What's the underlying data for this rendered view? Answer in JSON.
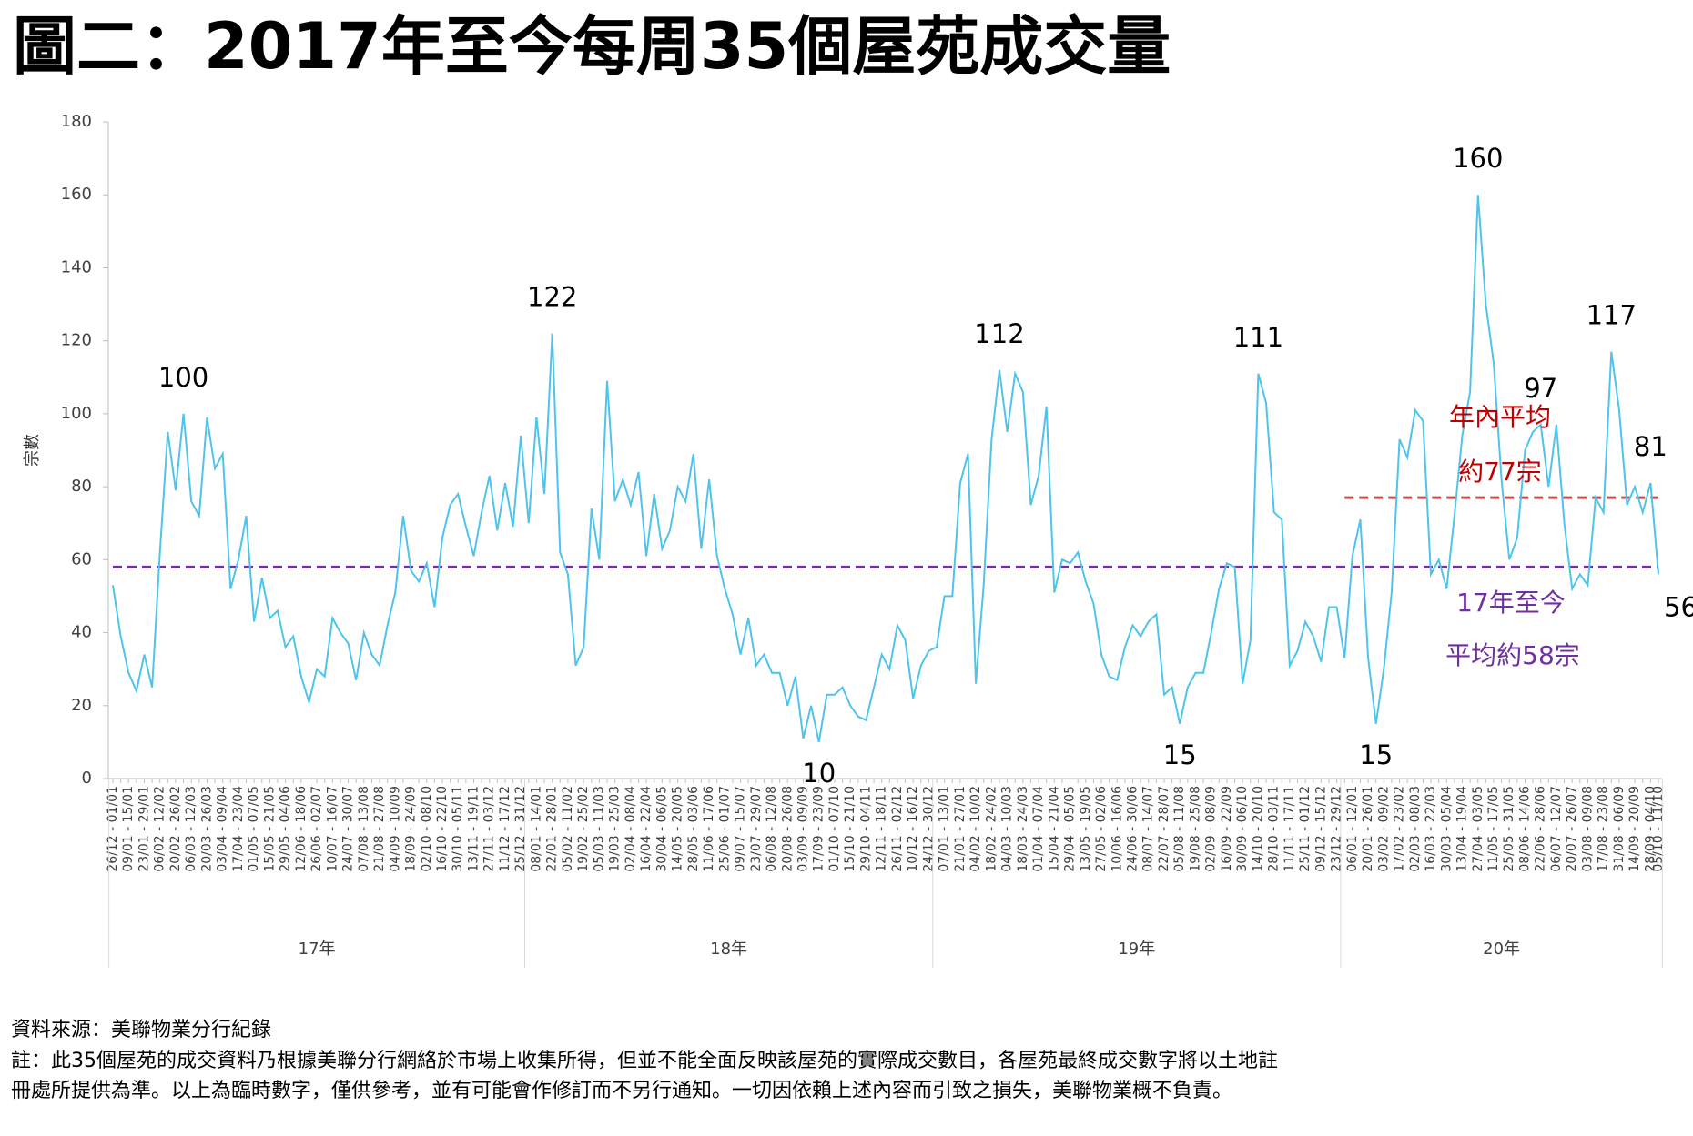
{
  "chart_data": {
    "type": "line",
    "title": "圖二：2017年至今每周35個屋苑成交量",
    "y_label": "宗數",
    "ylim": [
      0,
      180
    ],
    "yticks": [
      0,
      20,
      40,
      60,
      80,
      100,
      120,
      140,
      160,
      180
    ],
    "categories": [
      "26/12 - 01/01",
      null,
      "09/01 - 15/01",
      null,
      "23/01 - 29/01",
      null,
      "06/02 - 12/02",
      null,
      "20/02 - 26/02",
      null,
      "06/03 - 12/03",
      null,
      "20/03 - 26/03",
      null,
      "03/04 - 09/04",
      null,
      "17/04 - 23/04",
      null,
      "01/05 - 07/05",
      null,
      "15/05 - 21/05",
      null,
      "29/05 - 04/06",
      null,
      "12/06 - 18/06",
      null,
      "26/06 - 02/07",
      null,
      "10/07 - 16/07",
      null,
      "24/07 - 30/07",
      null,
      "07/08 - 13/08",
      null,
      "21/08 - 27/08",
      null,
      "04/09 - 10/09",
      null,
      "18/09 - 24/09",
      null,
      "02/10 - 08/10",
      null,
      "16/10 - 22/10",
      null,
      "30/10 - 05/11",
      null,
      "13/11 - 19/11",
      null,
      "27/11 - 03/12",
      null,
      "11/12 - 17/12",
      null,
      "25/12 - 31/12",
      null,
      "08/01 - 14/01",
      null,
      "22/01 - 28/01",
      null,
      "05/02 - 11/02",
      null,
      "19/02 - 25/02",
      null,
      "05/03 - 11/03",
      null,
      "19/03 - 25/03",
      null,
      "02/04 - 08/04",
      null,
      "16/04 - 22/04",
      null,
      "30/04 - 06/05",
      null,
      "14/05 - 20/05",
      null,
      "28/05 - 03/06",
      null,
      "11/06 - 17/06",
      null,
      "25/06 - 01/07",
      null,
      "09/07 - 15/07",
      null,
      "23/07 - 29/07",
      null,
      "06/08 - 12/08",
      null,
      "20/08 - 26/08",
      null,
      "03/09 - 09/09",
      null,
      "17/09 - 23/09",
      null,
      "01/10 - 07/10",
      null,
      "15/10 - 21/10",
      null,
      "29/10 - 04/11",
      null,
      "12/11 - 18/11",
      null,
      "26/11 - 02/12",
      null,
      "10/12 - 16/12",
      null,
      "24/12 - 30/12",
      null,
      "07/01 - 13/01",
      null,
      "21/01 - 27/01",
      null,
      "04/02 - 10/02",
      null,
      "18/02 - 24/02",
      null,
      "04/03 - 10/03",
      null,
      "18/03 - 24/03",
      null,
      "01/04 - 07/04",
      null,
      "15/04 - 21/04",
      null,
      "29/04 - 05/05",
      null,
      "13/05 - 19/05",
      null,
      "27/05 - 02/06",
      null,
      "10/06 - 16/06",
      null,
      "24/06 - 30/06",
      null,
      "08/07 - 14/07",
      null,
      "22/07 - 28/07",
      null,
      "05/08 - 11/08",
      null,
      "19/08 - 25/08",
      null,
      "02/09 - 08/09",
      null,
      "16/09 - 22/09",
      null,
      "30/09 - 06/10",
      null,
      "14/10 - 20/10",
      null,
      "28/10 - 03/11",
      null,
      "11/11 - 17/11",
      null,
      "25/11 - 01/12",
      null,
      "09/12 - 15/12",
      null,
      "23/12 - 29/12",
      null,
      "06/01 - 12/01",
      null,
      "20/01 - 26/01",
      null,
      "03/02 - 09/02",
      null,
      "17/02 - 23/02",
      null,
      "02/03 - 08/03",
      null,
      "16/03 - 22/03",
      null,
      "30/03 - 05/04",
      null,
      "13/04 - 19/04",
      null,
      "27/04 - 03/05",
      null,
      "11/05 - 17/05",
      null,
      "25/05 - 31/05",
      null,
      "08/06 - 14/06",
      null,
      "22/06 - 28/06",
      null,
      "06/07 - 12/07",
      null,
      "20/07 - 26/07",
      null,
      "03/08 - 09/08",
      null,
      "17/08 - 23/08",
      null,
      "31/08 - 06/09",
      null,
      "14/09 - 20/09",
      null,
      "28/09 - 04/10",
      "05/10 - 11/10"
    ],
    "groups": [
      {
        "label": "17年",
        "start": 0,
        "end": 52
      },
      {
        "label": "18年",
        "start": 53,
        "end": 104
      },
      {
        "label": "19年",
        "start": 105,
        "end": 156
      },
      {
        "label": "20年",
        "start": 157,
        "end": 197
      }
    ],
    "series": [
      {
        "name": "成交量",
        "color": "#4fc3ea",
        "values": [
          53,
          39,
          29,
          24,
          34,
          25,
          62,
          95,
          79,
          100,
          76,
          72,
          99,
          85,
          89,
          52,
          60,
          72,
          43,
          55,
          44,
          46,
          36,
          39,
          28,
          21,
          30,
          28,
          44,
          40,
          37,
          27,
          40,
          34,
          31,
          42,
          51,
          72,
          57,
          54,
          59,
          47,
          66,
          75,
          78,
          69,
          61,
          73,
          83,
          68,
          81,
          69,
          94,
          70,
          99,
          78,
          122,
          62,
          56,
          31,
          36,
          74,
          60,
          109,
          76,
          82,
          75,
          84,
          61,
          78,
          63,
          68,
          80,
          76,
          89,
          63,
          82,
          61,
          52,
          45,
          34,
          44,
          31,
          34,
          29,
          29,
          20,
          28,
          11,
          20,
          10,
          23,
          23,
          25,
          20,
          17,
          16,
          25,
          34,
          30,
          42,
          38,
          22,
          31,
          35,
          36,
          50,
          50,
          81,
          89,
          26,
          53,
          93,
          112,
          95,
          111,
          106,
          75,
          83,
          102,
          51,
          60,
          59,
          62,
          54,
          48,
          34,
          28,
          27,
          36,
          42,
          39,
          43,
          45,
          23,
          25,
          15,
          25,
          29,
          29,
          40,
          52,
          59,
          58,
          26,
          38,
          111,
          103,
          73,
          71,
          31,
          35,
          43,
          39,
          32,
          47,
          47,
          33,
          61,
          71,
          33,
          15,
          30,
          51,
          93,
          88,
          101,
          98,
          56,
          60,
          52,
          72,
          94,
          106,
          160,
          130,
          114,
          82,
          60,
          66,
          90,
          95,
          97,
          80,
          97,
          70,
          52,
          56,
          53,
          77,
          73,
          117,
          101,
          75,
          80,
          73,
          81,
          56
        ]
      }
    ],
    "labeled_points": [
      9,
      56,
      90,
      113,
      136,
      146,
      161,
      174,
      182,
      191,
      196,
      197
    ],
    "reference_lines": [
      {
        "value": 58,
        "color": "#7030a0",
        "start": 0,
        "end": 197,
        "label": [
          "17年至今",
          "平均約58宗"
        ]
      },
      {
        "value": 77,
        "color": "#c0504d",
        "start": 157,
        "end": 197,
        "label": [
          "年內平均",
          "約77宗"
        ],
        "label_color": "#c00000"
      }
    ],
    "source": "資料來源：美聯物業分行紀錄",
    "note": [
      "註：此35個屋苑的成交資料乃根據美聯分行網絡於市場上收集所得，但並不能全面反映該屋苑的實際成交數目，各屋苑最終成交數字將以土地註",
      "冊處所提供為準。以上為臨時數字，僅供參考，並有可能會作修訂而不另行通知。一切因依賴上述內容而引致之損失，美聯物業概不負責。"
    ]
  }
}
